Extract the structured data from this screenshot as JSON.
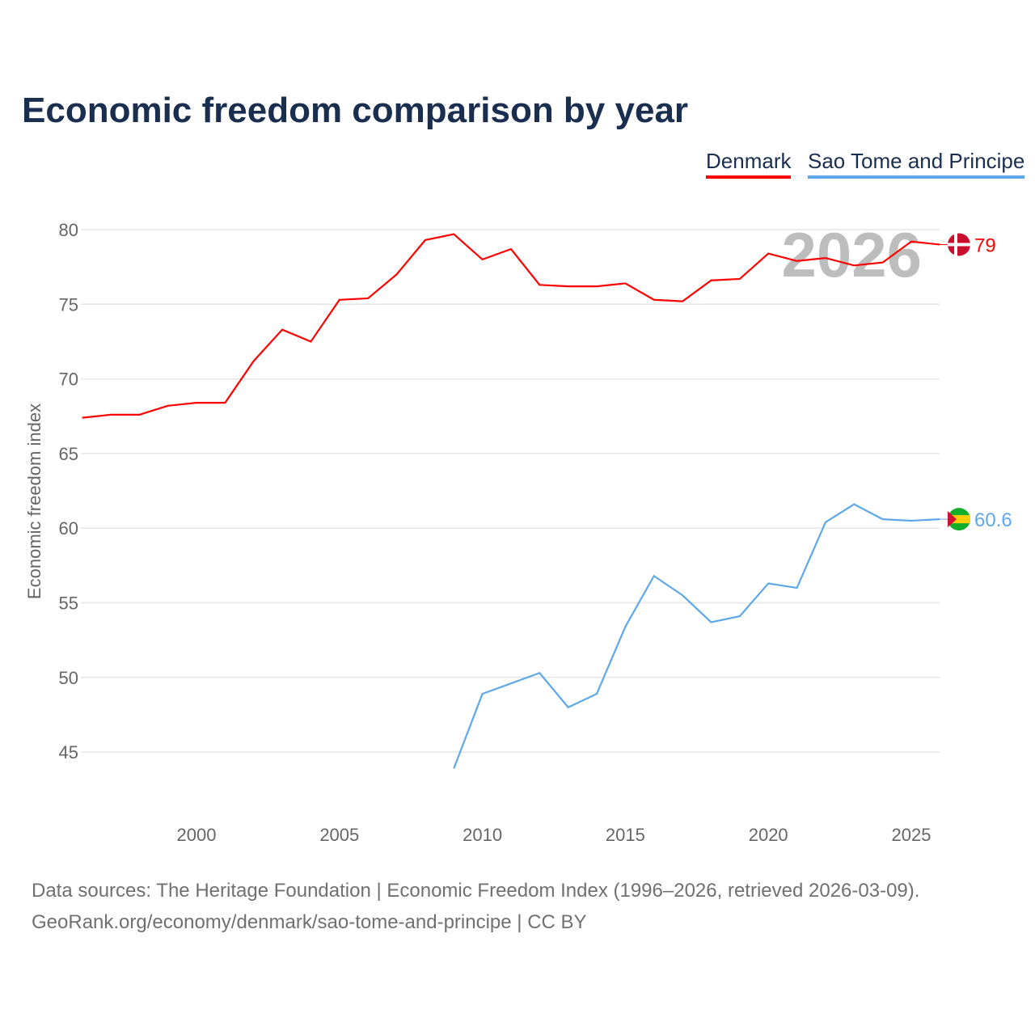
{
  "title": "Economic freedom comparison by year",
  "source_line1": "Data sources: The Heritage Foundation | Economic Freedom Index (1996–2026, retrieved 2026-03-09).",
  "source_line2": "GeoRank.org/economy/denmark/sao-tome-and-principe | CC BY",
  "chart_data": {
    "type": "line",
    "title": "Economic freedom comparison by year",
    "ylabel": "Economic freedom index",
    "xlabel": "",
    "xlim": [
      1996,
      2026
    ],
    "ylim": [
      41,
      82
    ],
    "yticks": [
      45,
      50,
      55,
      60,
      65,
      70,
      75,
      80
    ],
    "xticks": [
      2000,
      2005,
      2010,
      2015,
      2020,
      2025
    ],
    "grid": true,
    "legend": "top-right",
    "watermark_year": "2026",
    "series": [
      {
        "name": "Denmark",
        "color": "#ff0000",
        "end_label": "79",
        "x": [
          1996,
          1997,
          1998,
          1999,
          2000,
          2001,
          2002,
          2003,
          2004,
          2005,
          2006,
          2007,
          2008,
          2009,
          2010,
          2011,
          2012,
          2013,
          2014,
          2015,
          2016,
          2017,
          2018,
          2019,
          2020,
          2021,
          2022,
          2023,
          2024,
          2025,
          2026
        ],
        "values": [
          67.4,
          67.6,
          67.6,
          68.2,
          68.4,
          68.4,
          71.2,
          73.3,
          72.5,
          75.3,
          75.4,
          77.0,
          79.3,
          79.7,
          78.0,
          78.7,
          76.3,
          76.2,
          76.2,
          76.4,
          75.3,
          75.2,
          76.6,
          76.7,
          78.4,
          77.9,
          78.1,
          77.6,
          77.8,
          79.2,
          79.0
        ]
      },
      {
        "name": "Sao Tome and Principe",
        "color": "#5ea8ea",
        "end_label": "60.6",
        "x": [
          2009,
          2010,
          2011,
          2012,
          2013,
          2014,
          2015,
          2016,
          2017,
          2018,
          2019,
          2020,
          2021,
          2022,
          2023,
          2024,
          2025,
          2026
        ],
        "values": [
          43.9,
          48.9,
          49.6,
          50.3,
          48.0,
          48.9,
          53.4,
          56.8,
          55.5,
          53.7,
          54.1,
          56.3,
          56.0,
          60.4,
          61.6,
          60.6,
          60.5,
          60.6
        ]
      }
    ]
  }
}
